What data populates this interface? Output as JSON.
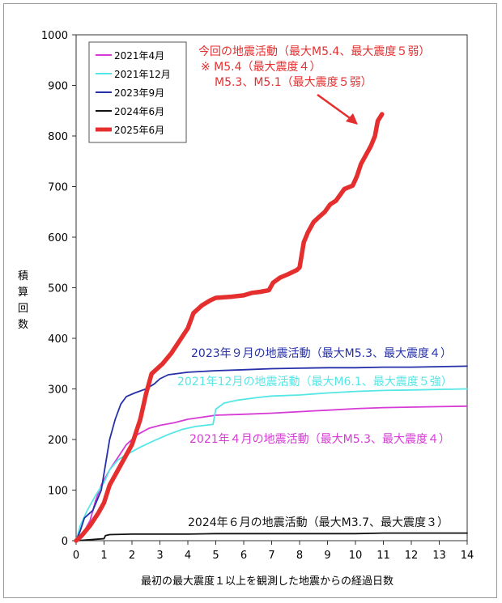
{
  "chart_data": {
    "type": "line",
    "xlabel": "最初の最大震度１以上を観測した地震からの経過日数",
    "ylabel": "積算回数",
    "xlim": [
      0,
      14
    ],
    "ylim": [
      0,
      1000
    ],
    "x_ticks": [
      0,
      1,
      2,
      3,
      4,
      5,
      6,
      7,
      8,
      9,
      10,
      11,
      12,
      13,
      14
    ],
    "y_ticks": [
      0,
      100,
      200,
      300,
      400,
      500,
      600,
      700,
      800,
      900,
      1000
    ],
    "grid": false,
    "legend_position": "top-left",
    "series": [
      {
        "name": "2021年4月",
        "color": "#d63bd6",
        "points": [
          [
            0,
            0
          ],
          [
            0.2,
            10
          ],
          [
            0.5,
            40
          ],
          [
            0.7,
            80
          ],
          [
            0.9,
            110
          ],
          [
            1.2,
            140
          ],
          [
            1.5,
            165
          ],
          [
            1.8,
            190
          ],
          [
            2.2,
            210
          ],
          [
            2.6,
            222
          ],
          [
            3,
            228
          ],
          [
            3.5,
            233
          ],
          [
            4,
            240
          ],
          [
            4.5,
            244
          ],
          [
            5,
            248
          ],
          [
            6,
            250
          ],
          [
            7,
            252
          ],
          [
            8,
            255
          ],
          [
            9,
            258
          ],
          [
            10,
            261
          ],
          [
            11,
            263
          ],
          [
            12,
            264
          ],
          [
            13,
            265
          ],
          [
            14,
            266
          ]
        ]
      },
      {
        "name": "2021年12月",
        "color": "#55e6e6",
        "points": [
          [
            0,
            0
          ],
          [
            0.15,
            30
          ],
          [
            0.4,
            60
          ],
          [
            0.7,
            90
          ],
          [
            1,
            115
          ],
          [
            1.2,
            140
          ],
          [
            1.5,
            160
          ],
          [
            1.8,
            170
          ],
          [
            2.3,
            185
          ],
          [
            2.8,
            198
          ],
          [
            3.3,
            210
          ],
          [
            3.8,
            220
          ],
          [
            4.3,
            226
          ],
          [
            4.9,
            230
          ],
          [
            5,
            260
          ],
          [
            5.3,
            272
          ],
          [
            5.8,
            278
          ],
          [
            6.5,
            283
          ],
          [
            7,
            286
          ],
          [
            8,
            288
          ],
          [
            9,
            292
          ],
          [
            10,
            295
          ],
          [
            11,
            297
          ],
          [
            12,
            298
          ],
          [
            13,
            299
          ],
          [
            14,
            300
          ]
        ]
      },
      {
        "name": "2023年9月",
        "color": "#2630a8",
        "points": [
          [
            0,
            0
          ],
          [
            0.15,
            20
          ],
          [
            0.3,
            45
          ],
          [
            0.6,
            60
          ],
          [
            0.9,
            100
          ],
          [
            1.05,
            150
          ],
          [
            1.2,
            200
          ],
          [
            1.4,
            240
          ],
          [
            1.6,
            270
          ],
          [
            1.8,
            285
          ],
          [
            2.1,
            292
          ],
          [
            2.5,
            300
          ],
          [
            2.8,
            310
          ],
          [
            3,
            320
          ],
          [
            3.3,
            328
          ],
          [
            4,
            333
          ],
          [
            5,
            336
          ],
          [
            6,
            338
          ],
          [
            7,
            340
          ],
          [
            8,
            341
          ],
          [
            9,
            342
          ],
          [
            10,
            342
          ],
          [
            11,
            343
          ],
          [
            12,
            343
          ],
          [
            13,
            344
          ],
          [
            14,
            345
          ]
        ]
      },
      {
        "name": "2024年6月",
        "color": "#111111",
        "points": [
          [
            0,
            0
          ],
          [
            0.5,
            2
          ],
          [
            1,
            4
          ],
          [
            1.05,
            10
          ],
          [
            1.2,
            12
          ],
          [
            2,
            13
          ],
          [
            3,
            13
          ],
          [
            4,
            13
          ],
          [
            5,
            14
          ],
          [
            6,
            14
          ],
          [
            7,
            14
          ],
          [
            8,
            14
          ],
          [
            9,
            14
          ],
          [
            10,
            14
          ],
          [
            11,
            15
          ],
          [
            12,
            15
          ],
          [
            13,
            15
          ],
          [
            14,
            15
          ]
        ]
      },
      {
        "name": "2025年6月",
        "color": "#e52f2f",
        "points": [
          [
            0,
            0
          ],
          [
            0.2,
            10
          ],
          [
            0.5,
            30
          ],
          [
            0.8,
            55
          ],
          [
            1,
            75
          ],
          [
            1.2,
            110
          ],
          [
            1.5,
            140
          ],
          [
            1.8,
            170
          ],
          [
            2,
            190
          ],
          [
            2.3,
            240
          ],
          [
            2.5,
            290
          ],
          [
            2.7,
            330
          ],
          [
            2.9,
            340
          ],
          [
            3.1,
            350
          ],
          [
            3.4,
            370
          ],
          [
            3.7,
            395
          ],
          [
            4,
            420
          ],
          [
            4.2,
            450
          ],
          [
            4.5,
            465
          ],
          [
            4.8,
            475
          ],
          [
            5,
            480
          ],
          [
            5.5,
            482
          ],
          [
            6,
            485
          ],
          [
            6.3,
            490
          ],
          [
            6.6,
            492
          ],
          [
            6.9,
            495
          ],
          [
            7.05,
            510
          ],
          [
            7.3,
            520
          ],
          [
            7.6,
            527
          ],
          [
            7.9,
            535
          ],
          [
            8,
            540
          ],
          [
            8.15,
            590
          ],
          [
            8.3,
            610
          ],
          [
            8.5,
            630
          ],
          [
            8.7,
            640
          ],
          [
            8.9,
            650
          ],
          [
            9.1,
            665
          ],
          [
            9.3,
            672
          ],
          [
            9.6,
            695
          ],
          [
            9.9,
            702
          ],
          [
            10.05,
            720
          ],
          [
            10.2,
            745
          ],
          [
            10.4,
            765
          ],
          [
            10.55,
            780
          ],
          [
            10.7,
            800
          ],
          [
            10.8,
            830
          ],
          [
            10.95,
            843
          ]
        ]
      }
    ],
    "annotations": {
      "current": {
        "line1": "今回の地震活動（最大M5.4、最大震度５弱）",
        "line2": "※ M5.4（最大震度４）",
        "line3": "M5.3、M5.1（最大震度５弱）"
      },
      "s2023": "2023年９月の地震活動（最大M5.3、最大震度４）",
      "s2021_12": "2021年12月の地震活動（最大M6.1、最大震度５強）",
      "s2021_04": "2021年４月の地震活動（最大M5.3、最大震度４）",
      "s2024": "2024年６月の地震活動（最大M3.7、最大震度３）"
    }
  }
}
